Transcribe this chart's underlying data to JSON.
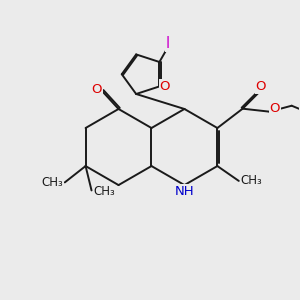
{
  "bg_color": "#ebebeb",
  "bond_color": "#1a1a1a",
  "lw": 1.4,
  "dbo": 0.055,
  "fs": 9.5,
  "fs_small": 8.5,
  "atom_colors": {
    "O": "#dd0000",
    "N": "#0000cc",
    "I": "#cc00cc",
    "C": "#1a1a1a"
  },
  "xlim": [
    0,
    10
  ],
  "ylim": [
    0,
    10
  ]
}
